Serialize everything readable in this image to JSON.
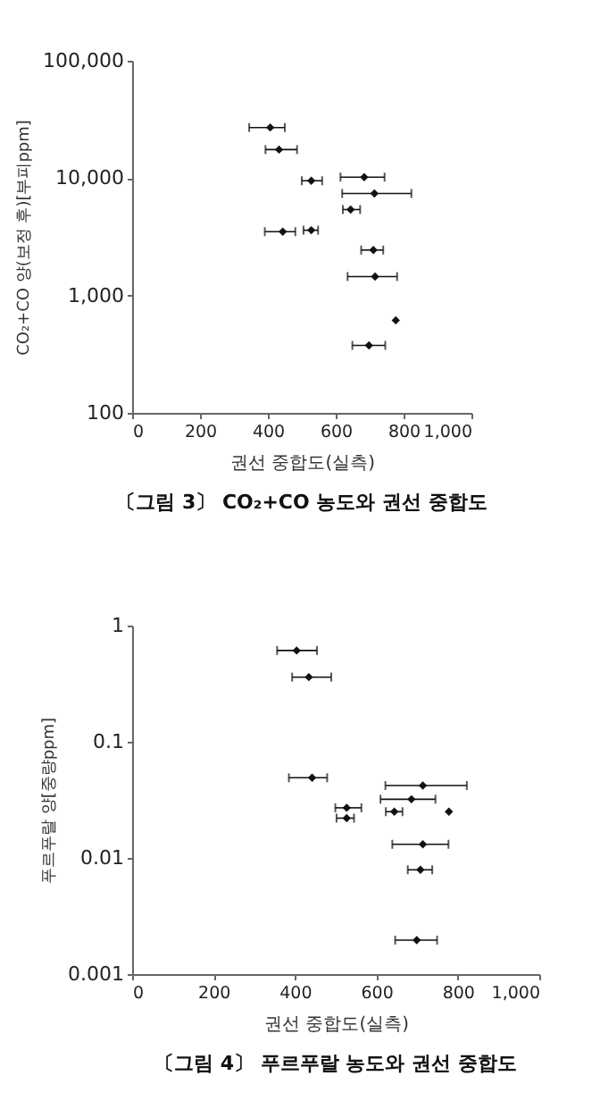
{
  "chart_data": [
    {
      "type": "scatter",
      "title": "〔그림 3〕 CO₂+CO 농도와 권선 중합도",
      "xlabel": "권선 중합도(실측)",
      "ylabel": "CO₂+CO 양(보정 후)[부피ppm]",
      "x": [
        407,
        433,
        528,
        684,
        714,
        644,
        444,
        528,
        711,
        716,
        777,
        698
      ],
      "series": [
        {
          "color": "#111111",
          "values": [
            27000,
            17500,
            9500,
            10200,
            7400,
            5400,
            3500,
            3600,
            2440,
            1450,
            615,
            376
          ],
          "xerrors": [
            [
              345,
              450
            ],
            [
              393,
              486
            ],
            [
              500,
              560
            ],
            [
              614,
              744
            ],
            [
              619,
              823
            ],
            [
              621,
              672
            ],
            [
              391,
              481
            ],
            [
              505,
              548
            ],
            [
              675,
              740
            ],
            [
              635,
              781
            ],
            null,
            [
              649,
              746
            ]
          ]
        }
      ],
      "xlim": [
        0,
        1000
      ],
      "ylim": [
        100,
        100000
      ],
      "log": "y",
      "marker": "diamond",
      "xticks": [
        0,
        200,
        400,
        600,
        800,
        {
          "value": 1000,
          "label": "1,000"
        }
      ],
      "yticks": [
        100,
        {
          "value": 1000,
          "label": "1,000"
        },
        {
          "value": 10000,
          "label": "10,000"
        },
        {
          "value": 100000,
          "label": "100,000"
        }
      ]
    },
    {
      "type": "scatter",
      "title": "〔그림 4〕 푸르푸랄 농도와 권선 중합도",
      "xlabel": "권선 중합도(실측)",
      "ylabel": "푸르푸랄 양[중량ppm]",
      "x": [
        404,
        434,
        442,
        714,
        686,
        527,
        644,
        778,
        527,
        714,
        708,
        699
      ],
      "series": [
        {
          "color": "#111111",
          "values": [
            0.61,
            0.36,
            0.049,
            0.042,
            0.032,
            0.027,
            0.025,
            0.025,
            0.022,
            0.0131,
            0.0079,
            0.00196
          ],
          "xerrors": [
            [
              356,
              454
            ],
            [
              393,
              489
            ],
            [
              385,
              479
            ],
            [
              622,
              822
            ],
            [
              610,
              745
            ],
            [
              499,
              563
            ],
            [
              623,
              664
            ],
            null,
            [
              502,
              545
            ],
            [
              639,
              777
            ],
            [
              677,
              737
            ],
            [
              646,
              749
            ]
          ]
        }
      ],
      "xlim": [
        0,
        1000
      ],
      "ylim": [
        0.001,
        1
      ],
      "log": "y",
      "marker": "diamond",
      "xticks": [
        0,
        200,
        400,
        600,
        800,
        {
          "value": 1000,
          "label": "1,000"
        }
      ],
      "yticks": [
        0.001,
        0.01,
        0.1,
        1
      ]
    }
  ]
}
